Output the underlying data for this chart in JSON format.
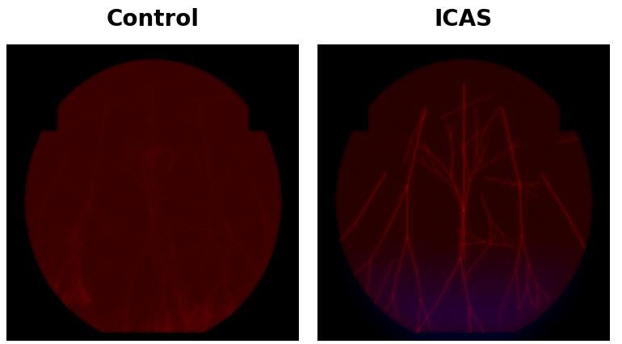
{
  "title_left": "Control",
  "title_right": "ICAS",
  "title_fontsize": 20,
  "title_fontweight": "bold",
  "figure_bg": "#ffffff",
  "fig_width": 7.7,
  "fig_height": 4.27,
  "dpi": 100
}
